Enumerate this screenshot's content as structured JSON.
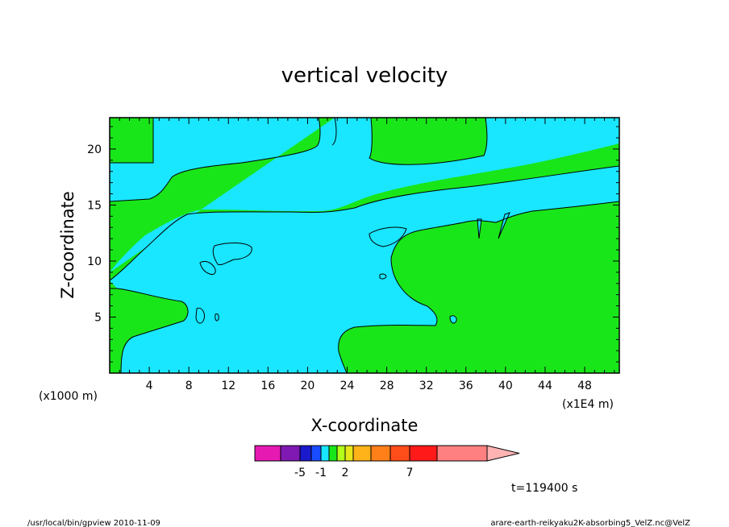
{
  "chart_data": {
    "type": "heatmap",
    "title": "vertical velocity",
    "xlabel": "X-coordinate",
    "ylabel": "Z-coordinate",
    "x_unit": "(x1E4 m)",
    "y_unit": "(x1000 m)",
    "xlim": [
      0,
      51.5
    ],
    "ylim": [
      0,
      22.8
    ],
    "x_ticks": [
      4,
      8,
      12,
      16,
      20,
      24,
      28,
      32,
      36,
      40,
      44,
      48
    ],
    "y_ticks": [
      5,
      10,
      15,
      20
    ],
    "colorbar": {
      "colors": [
        "#e619b3",
        "#8019b3",
        "#1a19cc",
        "#1a4cff",
        "#19e6ff",
        "#19e619",
        "#b3ff19",
        "#e6e619",
        "#ffb319",
        "#ff8019",
        "#ff4d19",
        "#ff1a19",
        "#ff8080",
        "#ffb3b3"
      ],
      "tick_labels": [
        {
          "label": "-5",
          "index": 2
        },
        {
          "label": "-1",
          "index": 4
        },
        {
          "label": "2",
          "index": 7
        },
        {
          "label": "7",
          "index": 11
        }
      ]
    },
    "fill_colors": {
      "background": "#19e619",
      "region": "#19e6ff"
    },
    "time_label": "t=119400 s"
  },
  "footer": {
    "left": "/usr/local/bin/gpview  2010-11-09",
    "right": "arare-earth-reikyaku2K-absorbing5_VelZ.nc@VelZ"
  }
}
